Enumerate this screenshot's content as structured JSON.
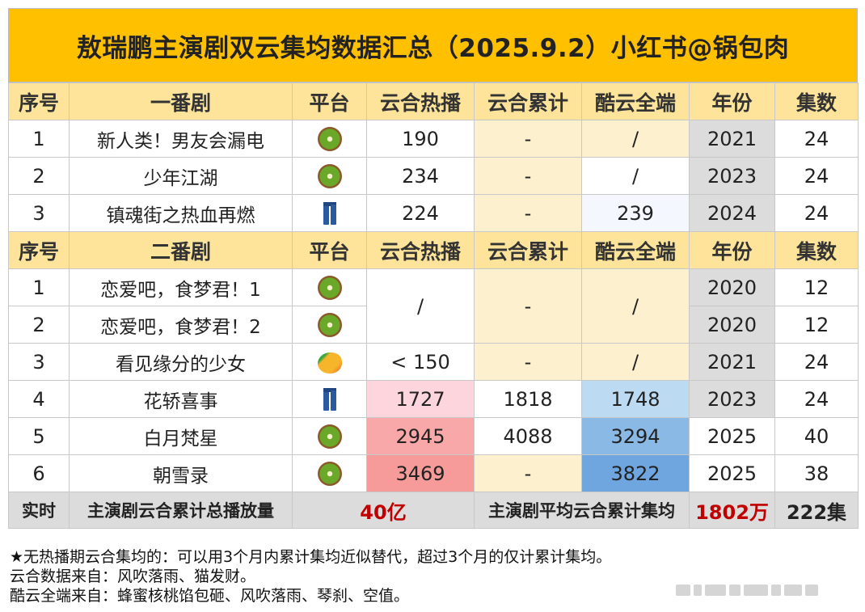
{
  "title": "敖瑞鹏主演剧双云集均数据汇总（2025.9.2）小红书@锅包肉",
  "header1": {
    "no": "序号",
    "name": "一番剧",
    "platform": "平台",
    "hot": "云合热播",
    "cum": "云合累计",
    "ku": "酷云全端",
    "year": "年份",
    "eps": "集数"
  },
  "header2": {
    "no": "序号",
    "name": "二番剧",
    "platform": "平台",
    "hot": "云合热播",
    "cum": "云合累计",
    "ku": "酷云全端",
    "year": "年份",
    "eps": "集数"
  },
  "lead_rows": [
    {
      "no": "1",
      "name": "新人类！男友会漏电",
      "platform": "kiwi-icon",
      "hot": "190",
      "cum": "-",
      "ku": "/",
      "year": "2021",
      "eps": "24"
    },
    {
      "no": "2",
      "name": "少年江湖",
      "platform": "kiwi-icon",
      "hot": "234",
      "cum": "-",
      "ku": "/",
      "year": "2023",
      "eps": "24"
    },
    {
      "no": "3",
      "name": "镇魂街之热血再燃",
      "platform": "jeans-icon",
      "hot": "224",
      "cum": "-",
      "ku": "239",
      "year": "2024",
      "eps": "24"
    }
  ],
  "support_rows": [
    {
      "no": "1",
      "name": "恋爱吧，食梦君！1",
      "platform": "kiwi-icon",
      "hot": "/",
      "cum": "-",
      "ku": "/",
      "year": "2020",
      "eps": "12"
    },
    {
      "no": "2",
      "name": "恋爱吧，食梦君！2",
      "platform": "kiwi-icon",
      "year": "2020",
      "eps": "12"
    },
    {
      "no": "3",
      "name": "看见缘分的少女",
      "platform": "mango-icon",
      "hot": "< 150",
      "cum": "-",
      "ku": "/",
      "year": "2021",
      "eps": "24"
    },
    {
      "no": "4",
      "name": "花轿喜事",
      "platform": "jeans-icon",
      "hot": "1727",
      "cum": "1818",
      "ku": "1748",
      "year": "2023",
      "eps": "24"
    },
    {
      "no": "5",
      "name": "白月梵星",
      "platform": "kiwi-icon",
      "hot": "2945",
      "cum": "4088",
      "ku": "3294",
      "year": "2025",
      "eps": "40"
    },
    {
      "no": "6",
      "name": "朝雪录",
      "platform": "kiwi-icon",
      "hot": "3469",
      "cum": "-",
      "ku": "3822",
      "year": "2025",
      "eps": "38"
    }
  ],
  "total": {
    "label": "实时",
    "desc": "主演剧云合累计总播放量",
    "value": "40亿",
    "avg_desc": "主演剧平均云合累计集均",
    "avg_value": "1802万",
    "eps_total": "222集"
  },
  "notes": [
    "★无热播期云合集均的：可以用3个月内累计集均近似替代，超过3个月的仅计累计集均。",
    "云合数据来自：风吹落雨、猫发财。",
    "酷云全端来自：蜂蜜核桃馅包砸、风吹落雨、琴刹、空值。"
  ],
  "colors": {
    "title_bg": "#ffc000",
    "header_bg": "#fde49a",
    "highlight_red": "#c00000"
  }
}
